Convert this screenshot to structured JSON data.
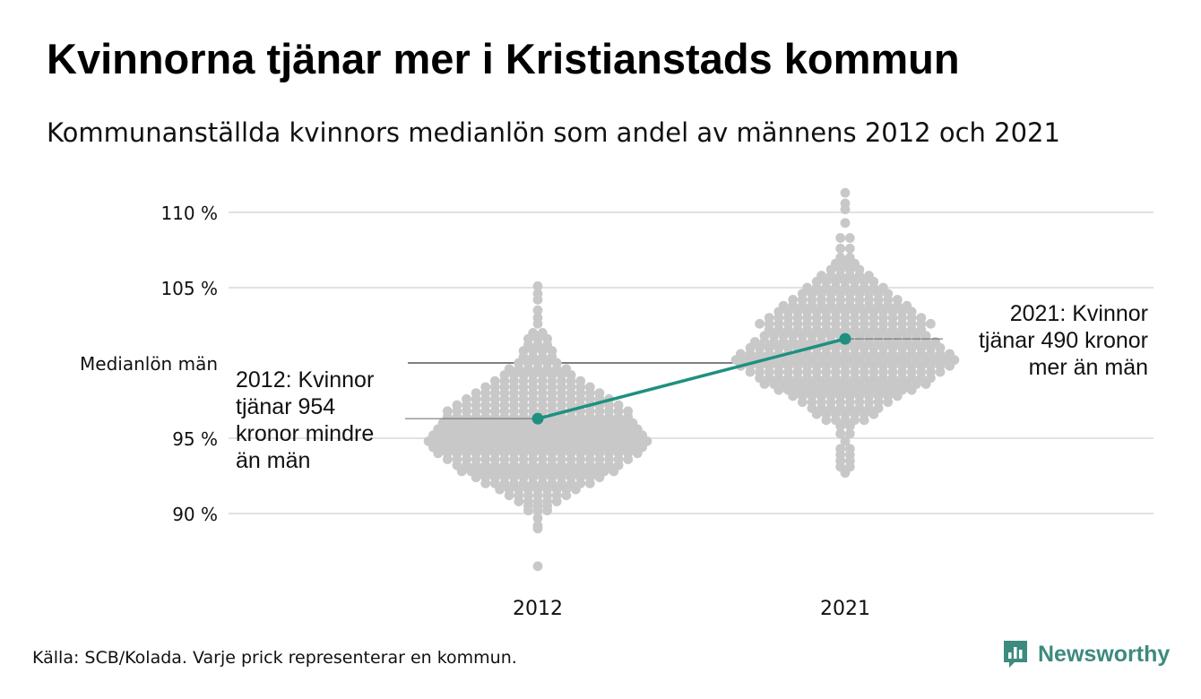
{
  "header": {
    "title": "Kvinnorna tjänar mer i Kristianstads kommun",
    "subtitle": "Kommunanställda kvinnors medianlön som andel av männens 2012 och 2021"
  },
  "footer": {
    "source": "Källa: SCB/Kolada. Varje prick representerar en kommun.",
    "brand": "Newsworthy"
  },
  "colors": {
    "dots": "#c8c8c8",
    "highlight": "#1e9080",
    "grid": "#e2e2e2",
    "reference": "#333333",
    "brand": "#3d8a7e"
  },
  "chart_data": {
    "type": "scatter",
    "subtype": "beeswarm",
    "categories": [
      "2012",
      "2021"
    ],
    "yticks": [
      90,
      95,
      105,
      110
    ],
    "ytick_labels": [
      "90 %",
      "95 %",
      "105 %",
      "110 %"
    ],
    "ylim": [
      85.5,
      112
    ],
    "reference_line": {
      "value": 100,
      "label": "Medianlön män"
    },
    "grid": true,
    "highlight": {
      "series": "Kristianstad",
      "values": [
        96.3,
        101.6
      ],
      "annotations": [
        "2012: Kvinnor tjänar 954 kronor mindre än män",
        "2021: Kvinnor tjänar 490 kronor mer än män"
      ]
    },
    "distributions": [
      {
        "category": "2012",
        "bins": [
          [
            86.5,
            1
          ],
          [
            89.0,
            1
          ],
          [
            89.2,
            1
          ],
          [
            89.7,
            1
          ],
          [
            90.2,
            3
          ],
          [
            90.5,
            3
          ],
          [
            90.8,
            5
          ],
          [
            91.2,
            7
          ],
          [
            91.6,
            9
          ],
          [
            92.0,
            12
          ],
          [
            92.4,
            14
          ],
          [
            92.8,
            17
          ],
          [
            93.2,
            18
          ],
          [
            93.6,
            20
          ],
          [
            94.0,
            22
          ],
          [
            94.4,
            23
          ],
          [
            94.8,
            24
          ],
          [
            95.2,
            23
          ],
          [
            95.6,
            22
          ],
          [
            96.0,
            21
          ],
          [
            96.4,
            20
          ],
          [
            96.8,
            20
          ],
          [
            97.2,
            18
          ],
          [
            97.6,
            16
          ],
          [
            98.0,
            14
          ],
          [
            98.4,
            12
          ],
          [
            98.8,
            10
          ],
          [
            99.2,
            8
          ],
          [
            99.6,
            7
          ],
          [
            100.0,
            5
          ],
          [
            100.4,
            4
          ],
          [
            100.8,
            4
          ],
          [
            101.2,
            3
          ],
          [
            101.6,
            3
          ],
          [
            102.0,
            2
          ],
          [
            102.6,
            1
          ],
          [
            103.0,
            1
          ],
          [
            103.5,
            1
          ],
          [
            104.2,
            1
          ],
          [
            104.6,
            1
          ],
          [
            105.1,
            1
          ]
        ]
      },
      {
        "category": "2021",
        "bins": [
          [
            92.7,
            1
          ],
          [
            93.1,
            2
          ],
          [
            93.5,
            2
          ],
          [
            93.9,
            2
          ],
          [
            94.3,
            2
          ],
          [
            94.8,
            1
          ],
          [
            95.3,
            2
          ],
          [
            95.8,
            2
          ],
          [
            96.2,
            5
          ],
          [
            96.6,
            7
          ],
          [
            97.0,
            8
          ],
          [
            97.4,
            10
          ],
          [
            97.8,
            12
          ],
          [
            98.2,
            15
          ],
          [
            98.6,
            18
          ],
          [
            99.0,
            19
          ],
          [
            99.4,
            21
          ],
          [
            99.8,
            23
          ],
          [
            100.2,
            24
          ],
          [
            100.6,
            23
          ],
          [
            101.0,
            21
          ],
          [
            101.4,
            20
          ],
          [
            101.8,
            18
          ],
          [
            102.2,
            17
          ],
          [
            102.6,
            19
          ],
          [
            103.0,
            17
          ],
          [
            103.4,
            15
          ],
          [
            103.8,
            14
          ],
          [
            104.2,
            12
          ],
          [
            104.6,
            10
          ],
          [
            105.0,
            9
          ],
          [
            105.4,
            7
          ],
          [
            105.8,
            6
          ],
          [
            106.2,
            4
          ],
          [
            106.6,
            3
          ],
          [
            107.0,
            2
          ],
          [
            107.6,
            2
          ],
          [
            108.3,
            2
          ],
          [
            109.3,
            1
          ],
          [
            110.2,
            1
          ],
          [
            110.6,
            1
          ],
          [
            111.3,
            1
          ]
        ]
      }
    ]
  }
}
